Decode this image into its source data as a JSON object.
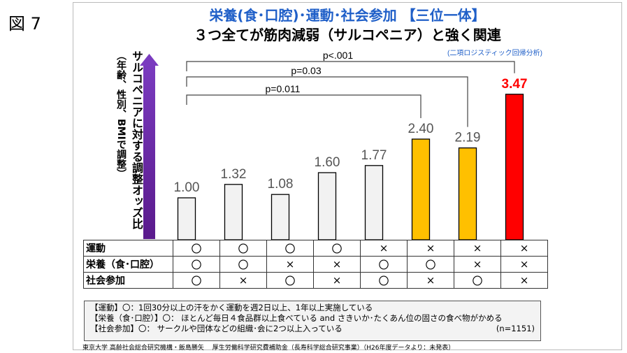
{
  "figure_label": "図 7",
  "chart_data": {
    "type": "bar",
    "title": "栄養(食･口腔)･運動･社会参加 【三位一体】",
    "subtitle": "３つ全てが筋肉減弱（サルコペニア）と強く関連",
    "ylabel": "サルコペニアに対する調整オッズ比",
    "ylabel_sub": "（年齢、性別、BMIで調整）",
    "ylim": [
      0,
      4
    ],
    "values": [
      1.0,
      1.32,
      1.08,
      1.6,
      1.77,
      2.4,
      2.19,
      3.47
    ],
    "value_labels": [
      "1.00",
      "1.32",
      "1.08",
      "1.60",
      "1.77",
      "2.40",
      "2.19",
      "3.47"
    ],
    "bar_colors": [
      "#f2f2f2",
      "#f2f2f2",
      "#f2f2f2",
      "#f2f2f2",
      "#f2f2f2",
      "#ffc000",
      "#ffc000",
      "#ff0000"
    ],
    "highlight_label_color": "#ff0000",
    "comparisons": [
      {
        "label": "p<.001",
        "from": 0,
        "to": 7
      },
      {
        "label": "p=0.03",
        "from": 0,
        "to": 6
      },
      {
        "label": "p=0.011",
        "from": 0,
        "to": 5
      }
    ],
    "method_note": "(二項ロジスティック回帰分析)"
  },
  "table": {
    "rows": [
      {
        "label": "運動",
        "cells": [
          "〇",
          "〇",
          "〇",
          "〇",
          "×",
          "×",
          "×",
          "×"
        ]
      },
      {
        "label": "栄養（食･口腔）",
        "cells": [
          "〇",
          "〇",
          "×",
          "×",
          "〇",
          "〇",
          "×",
          "×"
        ]
      },
      {
        "label": "社会参加",
        "cells": [
          "〇",
          "×",
          "〇",
          "×",
          "〇",
          "×",
          "〇",
          "×"
        ]
      }
    ]
  },
  "legend": {
    "line1": "【運動】〇：1回30分以上の汗をかく運動を週2日以上、1年以上実施している",
    "line2": "【栄養（食･口腔）】〇： ほとんど毎日４食品群以上食べている and さきいか･たくあん位の固さの食べ物がかめる",
    "line3": "【社会参加】〇： サークルや団体などの組織･会に2つ以上入っている",
    "n": "(n=1151)"
  },
  "footer": "東京大学 高齢社会総合研究機構・飯島勝矢　 厚生労働科学研究費補助金（長寿科学総合研究事業）（H26年度データより：未発表）"
}
